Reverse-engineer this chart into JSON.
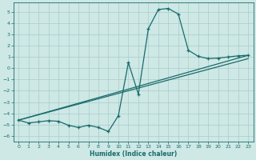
{
  "xlabel": "Humidex (Indice chaleur)",
  "bg_color": "#cde8e5",
  "grid_color": "#a8ccca",
  "line_color": "#1a6b6b",
  "xlim": [
    -0.5,
    23.5
  ],
  "ylim": [
    -6.5,
    5.8
  ],
  "yticks": [
    -6,
    -5,
    -4,
    -3,
    -2,
    -1,
    0,
    1,
    2,
    3,
    4,
    5
  ],
  "xticks": [
    0,
    1,
    2,
    3,
    4,
    5,
    6,
    7,
    8,
    9,
    10,
    11,
    12,
    13,
    14,
    15,
    16,
    17,
    18,
    19,
    20,
    21,
    22,
    23
  ],
  "line1_x": [
    0,
    1,
    2,
    3,
    4,
    5,
    6,
    7,
    8,
    9,
    10,
    11,
    12,
    13,
    14,
    15,
    16,
    17,
    18,
    19,
    20,
    21,
    22,
    23
  ],
  "line1_y": [
    -4.6,
    -4.85,
    -4.75,
    -4.65,
    -4.7,
    -5.05,
    -5.25,
    -5.05,
    -5.25,
    -5.6,
    -4.2,
    0.5,
    -2.3,
    3.5,
    5.2,
    5.3,
    4.8,
    1.6,
    1.05,
    0.85,
    0.9,
    1.0,
    1.1,
    1.15
  ],
  "line2_x": [
    0,
    23
  ],
  "line2_y": [
    -4.6,
    1.15
  ],
  "line3_x": [
    0,
    23
  ],
  "line3_y": [
    -4.6,
    0.85
  ]
}
